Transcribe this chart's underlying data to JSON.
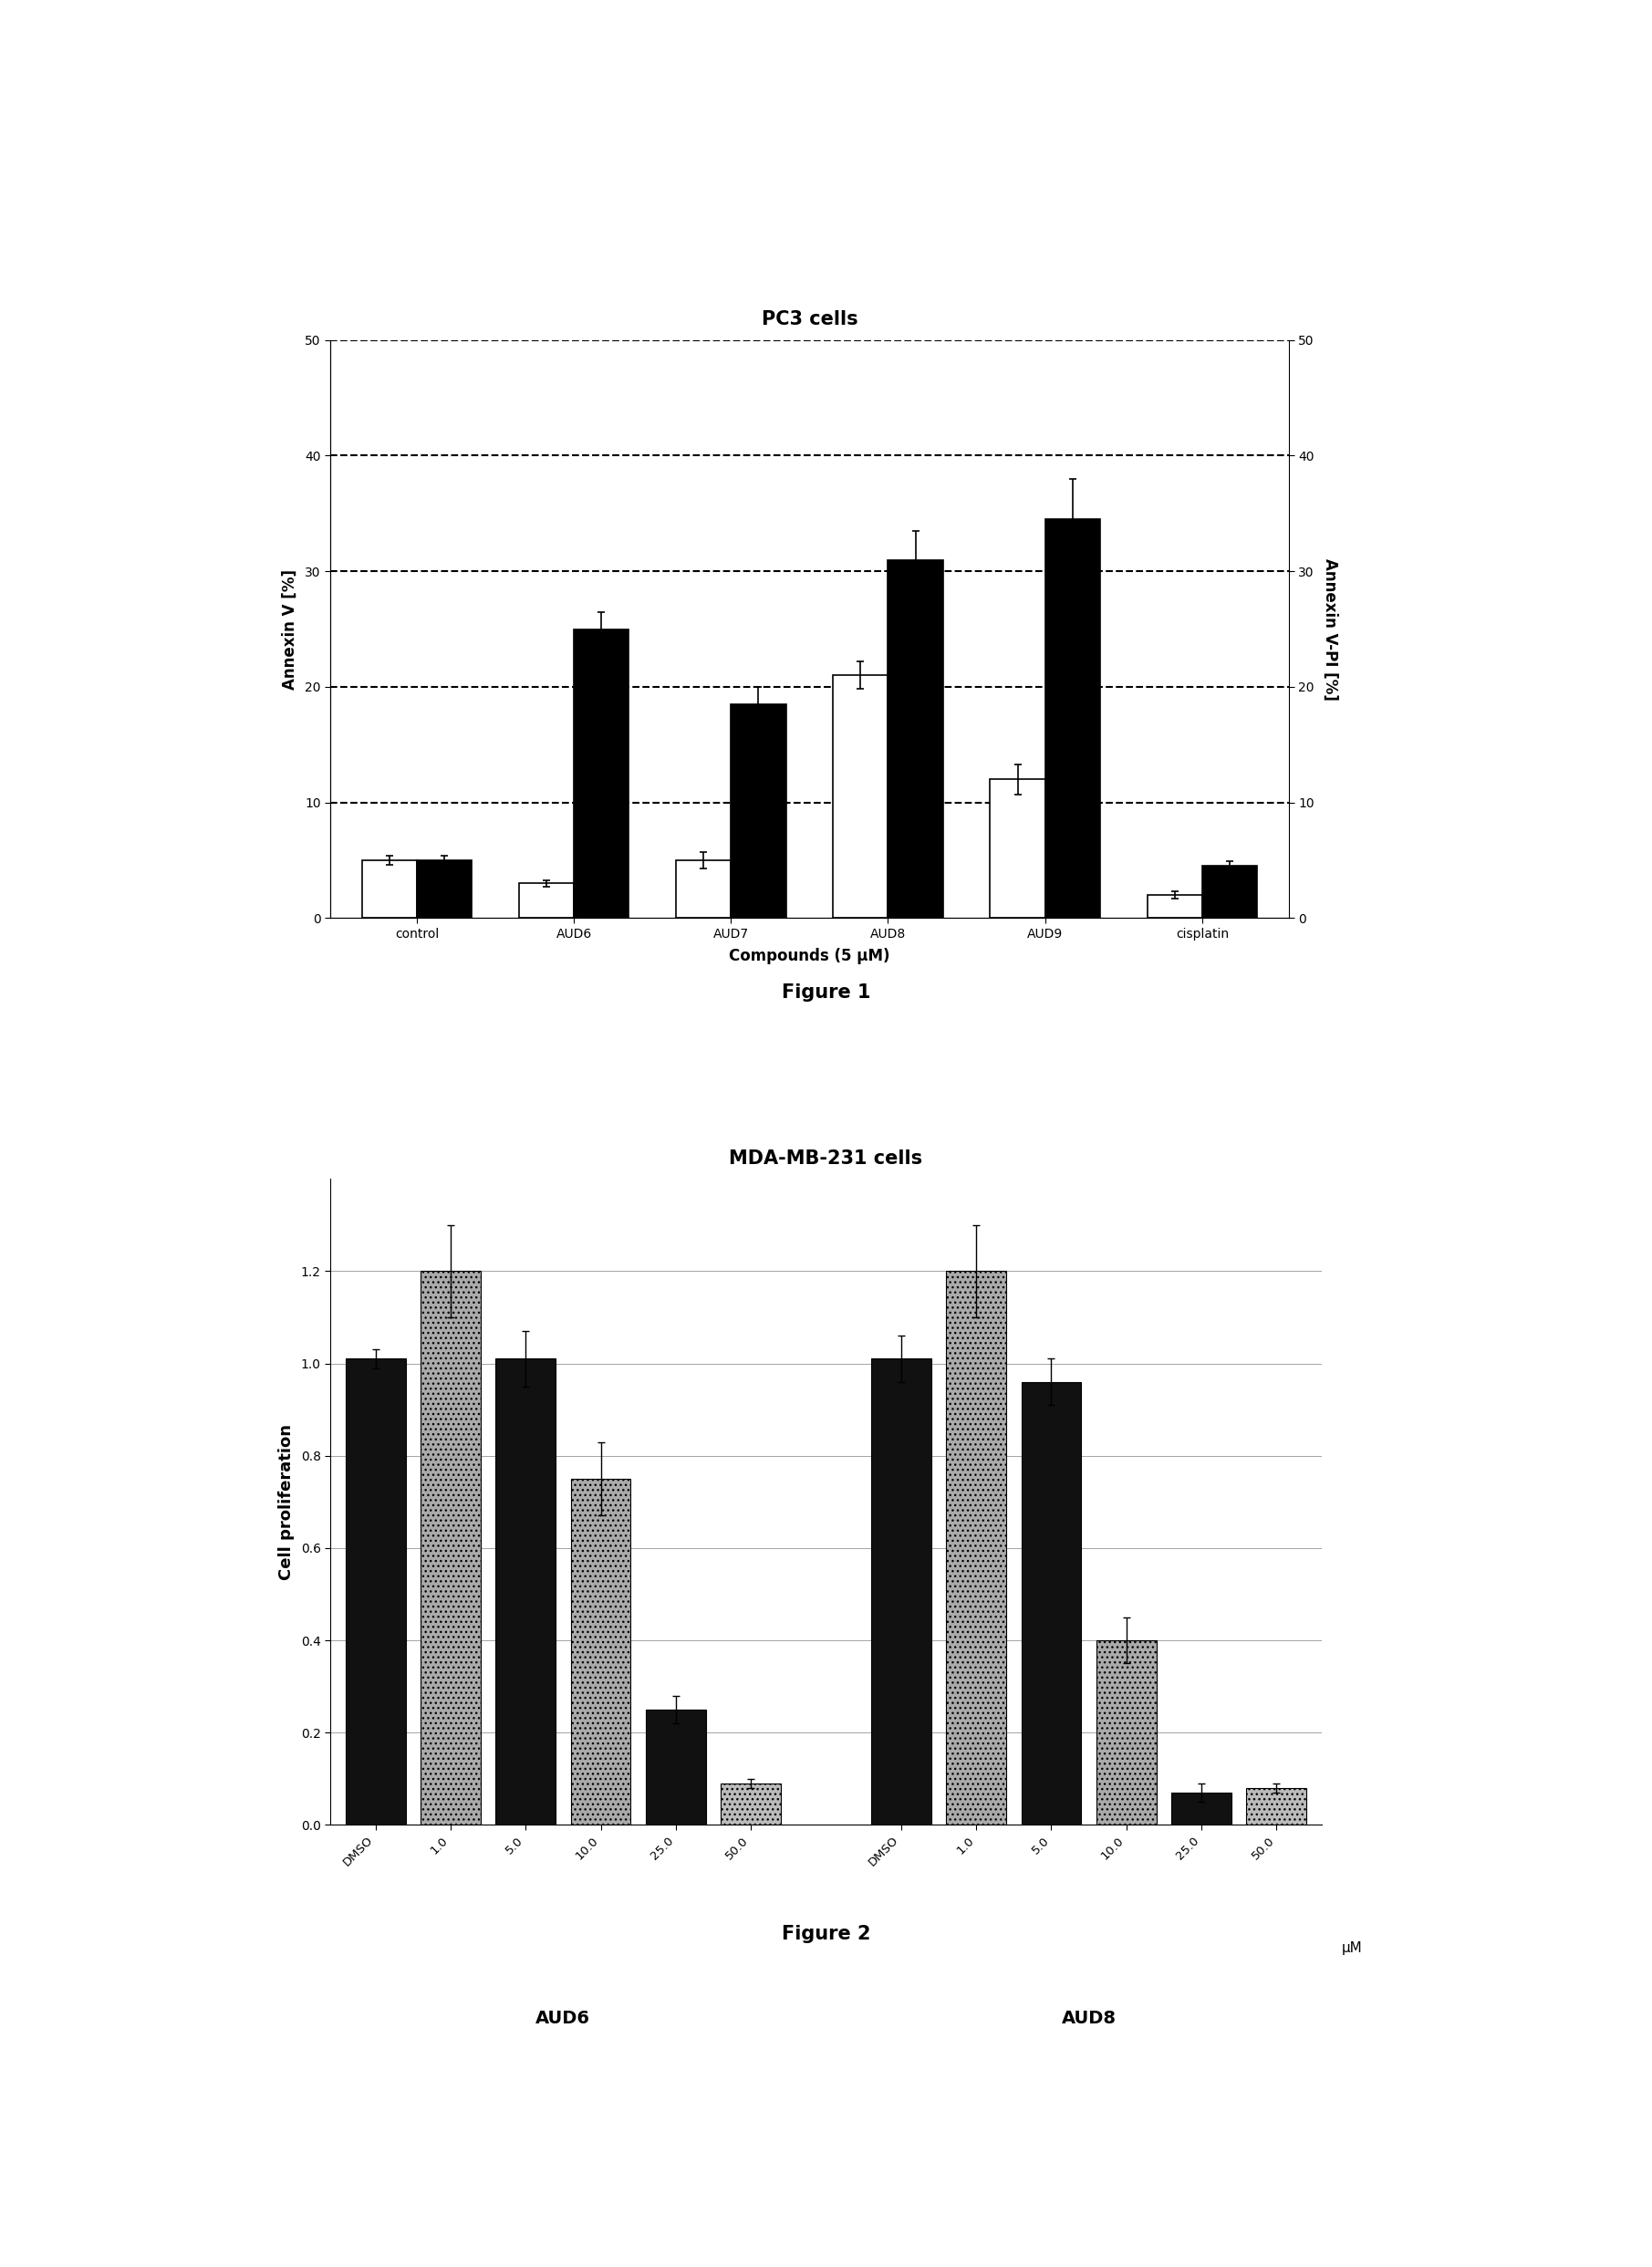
{
  "fig1": {
    "title": "PC3 cells",
    "xlabel": "Compounds (5 μM)",
    "ylabel_left": "Annexin V [%]",
    "ylabel_right": "Annexin V-PI [%]",
    "categories": [
      "control",
      "AUD6",
      "AUD7",
      "AUD8",
      "AUD9",
      "cisplatin"
    ],
    "annexin_v": [
      5.0,
      3.0,
      5.0,
      21.0,
      12.0,
      2.0
    ],
    "annexin_v_err": [
      0.4,
      0.3,
      0.7,
      1.2,
      1.3,
      0.3
    ],
    "annexin_vpi": [
      5.0,
      25.0,
      18.5,
      31.0,
      34.5,
      4.5
    ],
    "annexin_vpi_err": [
      0.4,
      1.5,
      1.5,
      2.5,
      3.5,
      0.4
    ],
    "ylim": [
      0,
      50
    ],
    "yticks": [
      0,
      10,
      20,
      30,
      40,
      50
    ],
    "grid_lines": [
      10,
      20,
      30,
      40,
      50
    ],
    "bar_width": 0.35,
    "color_white": "#ffffff",
    "color_black": "#000000",
    "figure_label": "Figure 1"
  },
  "fig2": {
    "title": "MDA-MB-231 cells",
    "ylabel": "Cell proliferation",
    "xlabel_right": "μM",
    "categories_aud6": [
      "DMSO",
      "1.0",
      "5.0",
      "10.0",
      "25.0",
      "50.0"
    ],
    "categories_aud8": [
      "DMSO",
      "1.0",
      "5.0",
      "10.0",
      "25.0",
      "50.0"
    ],
    "aud6_values": [
      1.01,
      1.2,
      1.01,
      0.75,
      0.25,
      0.09
    ],
    "aud6_err": [
      0.02,
      0.1,
      0.06,
      0.08,
      0.03,
      0.01
    ],
    "aud8_values": [
      1.01,
      1.2,
      0.96,
      0.4,
      0.07,
      0.08
    ],
    "aud8_err": [
      0.05,
      0.1,
      0.05,
      0.05,
      0.02,
      0.01
    ],
    "ylim": [
      0.0,
      1.4
    ],
    "yticks": [
      0.0,
      0.2,
      0.4,
      0.6,
      0.8,
      1.0,
      1.2
    ],
    "grid_lines": [
      0.2,
      0.4,
      0.6,
      0.8,
      1.0,
      1.2
    ],
    "label_aud6": "AUD6",
    "label_aud8": "AUD8",
    "figure_label": "Figure 2"
  }
}
